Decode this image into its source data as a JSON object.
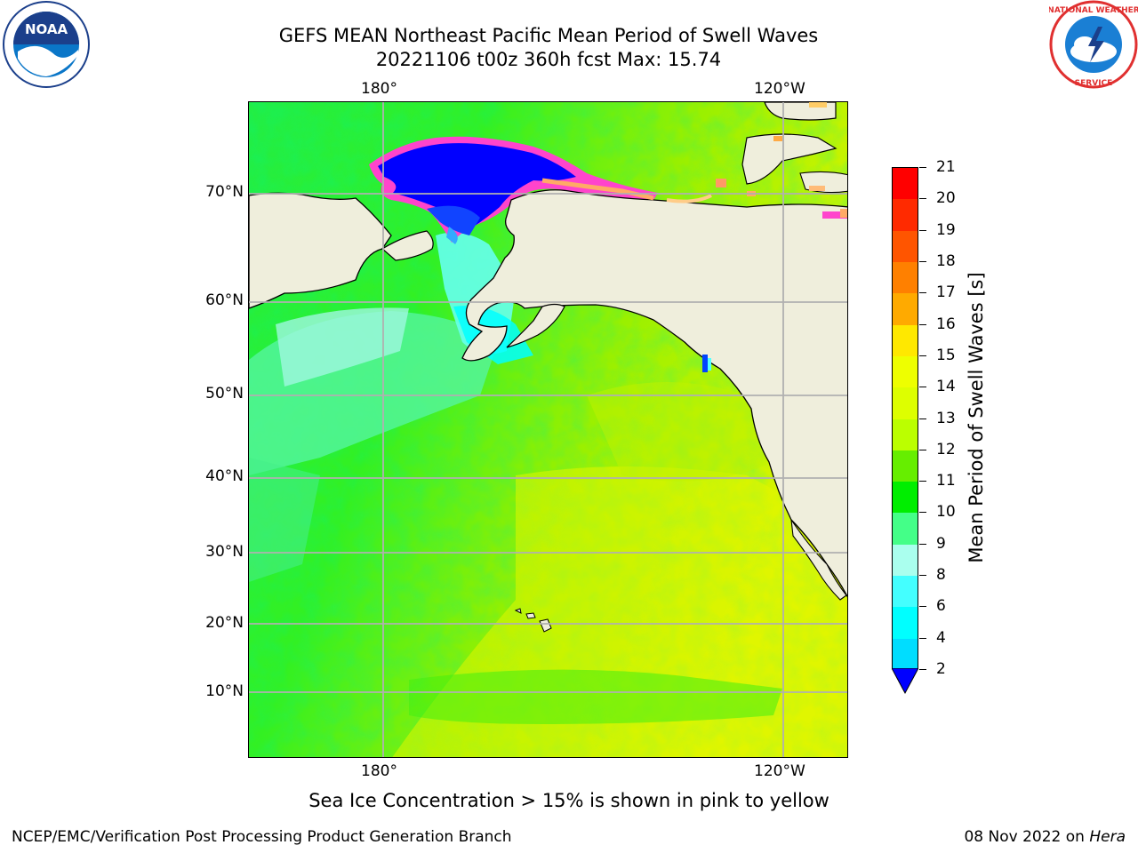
{
  "title": {
    "line1": "GEFS MEAN Northeast Pacific Mean Period of Swell Waves",
    "line2": "20221106 t00z 360h fcst   Max: 15.74"
  },
  "logos": {
    "left": {
      "name": "NOAA",
      "ring_text": "NATIONAL OCEANIC AND ATMOSPHERIC ADMINISTRATION · U.S. DEPARTMENT OF COMMERCE"
    },
    "right": {
      "name": "NATIONAL WEATHER SERVICE"
    }
  },
  "map": {
    "lon_labels_top": [
      "180°",
      "120°W"
    ],
    "lon_labels_bottom": [
      "180°",
      "120°W"
    ],
    "lat_labels": [
      "70°N",
      "60°N",
      "50°N",
      "40°N",
      "30°N",
      "20°N",
      "10°N"
    ],
    "colors": {
      "land": "#efeedc",
      "grid": "#b0b0b0",
      "ice_core": "#0000ff",
      "ice_edge": "#ff44cc"
    }
  },
  "colorbar": {
    "title": "Mean Period of Swell Waves [s]",
    "labels": [
      "21",
      "20",
      "19",
      "18",
      "17",
      "16",
      "15",
      "14",
      "13",
      "12",
      "11",
      "10",
      "9",
      "8",
      "6",
      "4",
      "2"
    ],
    "colors_top_to_bottom": [
      "#ff0000",
      "#ff2a00",
      "#ff5500",
      "#ff8000",
      "#ffaa00",
      "#ffe800",
      "#eeff00",
      "#ddff00",
      "#bbff00",
      "#66ee00",
      "#00ee00",
      "#44ff88",
      "#aaffee",
      "#44ffff",
      "#00ffff",
      "#00ddff",
      "#0077ff"
    ],
    "extend_color": "#0000ff"
  },
  "notes": {
    "ice": "Sea Ice Concentration > 15% is shown in pink to yellow"
  },
  "footer": {
    "left": "NCEP/EMC/Verification Post Processing Product Generation Branch",
    "right_date": "08 Nov 2022 on ",
    "right_machine": "Hera"
  }
}
